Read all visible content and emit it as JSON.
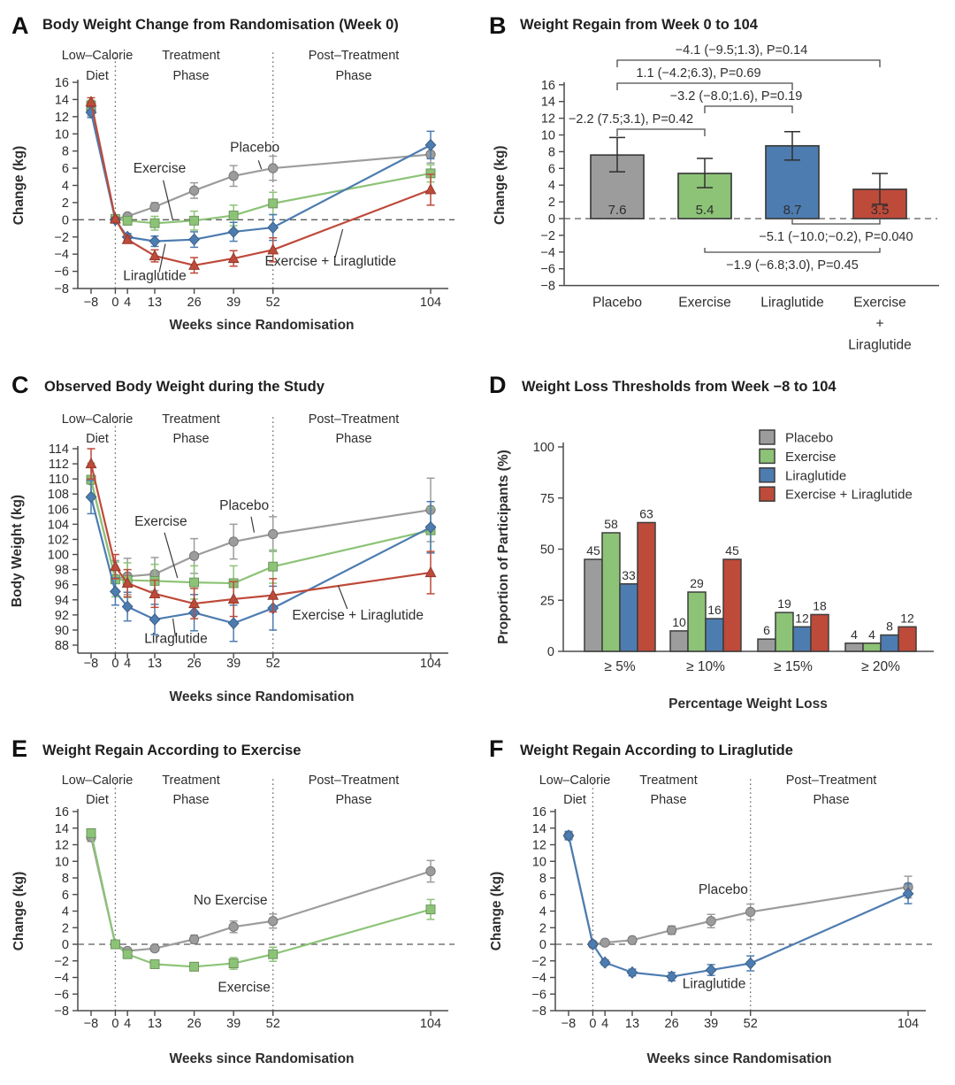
{
  "panels": {
    "A": {
      "letter": "A",
      "title": "Body Weight Change from Randomisation (Week 0)"
    },
    "B": {
      "letter": "B",
      "title": "Weight Regain from Week 0 to 104"
    },
    "C": {
      "letter": "C",
      "title": "Observed Body Weight during the Study"
    },
    "D": {
      "letter": "D",
      "title": "Weight Loss Thresholds from Week −8 to 104"
    },
    "E": {
      "letter": "E",
      "title": "Weight Regain According to Exercise"
    },
    "F": {
      "letter": "F",
      "title": "Weight Regain According to Liraglutide"
    }
  },
  "phase_labels": [
    {
      "lines": [
        "Low–Calorie",
        "Diet"
      ]
    },
    {
      "lines": [
        "Treatment",
        "Phase"
      ]
    },
    {
      "lines": [
        "Post–Treatment",
        "Phase"
      ]
    }
  ],
  "colors": {
    "placebo": "#9C9C9C",
    "exercise": "#8CC377",
    "liraglutide": "#4D7CB0",
    "combo": "#BE4A3A",
    "axis": "#4A4A4A",
    "text": "#2E2E2E",
    "zero_dash": "#5A5A5A",
    "divider_dot": "#6E6E6E",
    "bar_outline": "#3D3D3D",
    "error_bar_dark": "#2F2F2F"
  },
  "chart_data": [
    {
      "panel": "A",
      "type": "line",
      "title": "Body Weight Change from Randomisation (Week 0)",
      "xlabel": "Weeks since Randomisation",
      "ylabel": "Change (kg)",
      "x": [
        -8,
        0,
        4,
        13,
        26,
        39,
        52,
        104
      ],
      "ylim": [
        -8,
        16
      ],
      "yticks": [
        -8,
        -6,
        -4,
        -2,
        0,
        2,
        4,
        6,
        8,
        10,
        12,
        14,
        16
      ],
      "zero_line": true,
      "phase_dividers": [
        0,
        52
      ],
      "series": [
        {
          "name": "Placebo",
          "color_key": "placebo",
          "marker": "circle",
          "values": [
            12.8,
            0.1,
            0.4,
            1.5,
            3.4,
            5.1,
            6.0,
            7.6
          ],
          "err": [
            0.7,
            0.2,
            0.3,
            0.5,
            0.9,
            1.2,
            1.4,
            1.0
          ]
        },
        {
          "name": "Exercise",
          "color_key": "exercise",
          "marker": "square",
          "values": [
            13.3,
            0.1,
            -0.1,
            -0.4,
            -0.1,
            0.5,
            1.9,
            5.4
          ],
          "err": [
            0.6,
            0.2,
            0.5,
            0.8,
            1.1,
            1.2,
            1.3,
            1.0
          ]
        },
        {
          "name": "Liraglutide",
          "color_key": "liraglutide",
          "marker": "diamond",
          "values": [
            12.5,
            0.0,
            -2.0,
            -2.5,
            -2.3,
            -1.4,
            -0.9,
            8.7
          ],
          "err": [
            0.6,
            0.2,
            0.4,
            0.6,
            0.9,
            1.1,
            1.5,
            1.6
          ]
        },
        {
          "name": "Exercise + Liraglutide",
          "color_key": "combo",
          "marker": "triangle",
          "values": [
            13.7,
            0.1,
            -2.3,
            -4.2,
            -5.3,
            -4.5,
            -3.5,
            3.5
          ],
          "err": [
            0.5,
            0.2,
            0.4,
            0.7,
            0.9,
            0.9,
            1.4,
            1.8
          ]
        }
      ],
      "annotations": [
        {
          "text": "Exercise",
          "x": 14.6,
          "y": 5.5,
          "leader": [
            15.8,
            4.6,
            19,
            -0.1
          ]
        },
        {
          "text": "Placebo",
          "x": 46,
          "y": 7.9,
          "leader": [
            47.2,
            6.9,
            48.2,
            5.9
          ]
        },
        {
          "text": "Liraglutide",
          "x": 13,
          "y": -7.0,
          "leader": [
            14.5,
            -6.1,
            16.5,
            -2.8
          ]
        },
        {
          "text": "Exercise + Liraglutide",
          "x": 71,
          "y": -5.3,
          "leader": [
            72.5,
            -4.4,
            75,
            -1.1
          ]
        }
      ]
    },
    {
      "panel": "B",
      "type": "bar",
      "title": "Weight Regain from Week 0 to 104",
      "ylabel": "Change (kg)",
      "ylim": [
        -8,
        16
      ],
      "yticks": [
        -8,
        -6,
        -4,
        -2,
        0,
        2,
        4,
        6,
        8,
        10,
        12,
        14,
        16
      ],
      "zero_line": true,
      "categories": [
        [
          "Placebo"
        ],
        [
          "Exercise"
        ],
        [
          "Liraglutide"
        ],
        [
          "Exercise",
          "+",
          "Liraglutide"
        ]
      ],
      "series_color_keys": [
        "placebo",
        "exercise",
        "liraglutide",
        "combo"
      ],
      "values": [
        7.6,
        5.4,
        8.7,
        3.5
      ],
      "bar_labels": [
        "7.6",
        "5.4",
        "8.7",
        "3.5"
      ],
      "ci_low": [
        5.6,
        3.7,
        7.0,
        1.7
      ],
      "ci_high": [
        9.7,
        7.2,
        10.4,
        5.4
      ],
      "comparisons": [
        {
          "text": "−4.1 (−9.5;1.3), P=0.14",
          "from": 0,
          "to": 3,
          "side": "top",
          "level": 0
        },
        {
          "text": "1.1 (−4.2;6.3), P=0.69",
          "from": 0,
          "to": 2,
          "side": "top",
          "level": 1
        },
        {
          "text": "−3.2 (−8.0;1.6), P=0.19",
          "from": 1,
          "to": 2,
          "side": "top",
          "level": 2
        },
        {
          "text": "−2.2 (7.5;3.1), P=0.42",
          "from": 0,
          "to": 1,
          "side": "top",
          "level": 3
        },
        {
          "text": "−5.1 (−10.0;−0.2), P=0.040",
          "from": 2,
          "to": 3,
          "side": "bottom",
          "level": 0
        },
        {
          "text": "−1.9 (−6.8;3.0), P=0.45",
          "from": 1,
          "to": 3,
          "side": "bottom",
          "level": 1
        }
      ]
    },
    {
      "panel": "C",
      "type": "line",
      "title": "Observed Body Weight during the Study",
      "xlabel": "Weeks since Randomisation",
      "ylabel": "Body Weight (kg)",
      "x": [
        -8,
        0,
        4,
        13,
        26,
        39,
        52,
        104
      ],
      "ylim": [
        88,
        114
      ],
      "yticks": [
        88,
        90,
        92,
        94,
        96,
        98,
        100,
        102,
        104,
        106,
        108,
        110,
        112,
        114
      ],
      "zero_line": false,
      "phase_dividers": [
        0,
        52
      ],
      "series": [
        {
          "name": "Placebo",
          "color_key": "placebo",
          "marker": "circle",
          "values": [
            109.8,
            96.8,
            97.1,
            97.4,
            99.8,
            101.7,
            102.7,
            105.9
          ],
          "err": [
            2.3,
            2.4,
            2.4,
            2.2,
            2.3,
            2.3,
            2.3,
            4.2
          ]
        },
        {
          "name": "Exercise",
          "color_key": "exercise",
          "marker": "square",
          "values": [
            109.9,
            96.7,
            96.6,
            96.5,
            96.3,
            96.2,
            98.4,
            103.2
          ],
          "err": [
            2.2,
            2.3,
            2.3,
            2.2,
            2.2,
            2.3,
            2.2,
            3.0
          ]
        },
        {
          "name": "Liraglutide",
          "color_key": "liraglutide",
          "marker": "diamond",
          "values": [
            107.6,
            95.1,
            93.1,
            91.4,
            92.3,
            90.9,
            92.9,
            103.6
          ],
          "err": [
            2.2,
            1.8,
            1.9,
            2.0,
            2.4,
            2.4,
            2.9,
            3.4
          ]
        },
        {
          "name": "Exercise + Liraglutide",
          "color_key": "combo",
          "marker": "triangle",
          "values": [
            112.0,
            98.4,
            96.2,
            94.8,
            93.5,
            94.1,
            94.6,
            97.6
          ],
          "err": [
            2.0,
            1.6,
            1.8,
            1.8,
            2.0,
            2.3,
            2.2,
            2.8
          ]
        }
      ],
      "annotations": [
        {
          "text": "Exercise",
          "x": 15,
          "y": 103.8,
          "leader": [
            16.2,
            102.9,
            20.5,
            96.9
          ]
        },
        {
          "text": "Placebo",
          "x": 42.5,
          "y": 105.9,
          "leader": [
            44.8,
            105.0,
            45.8,
            102.9
          ]
        },
        {
          "text": "Liraglutide",
          "x": 20,
          "y": 88.3,
          "leader": [
            19.8,
            89.2,
            19,
            91.5
          ]
        },
        {
          "text": "Exercise + Liraglutide",
          "x": 80,
          "y": 91.4,
          "leader": [
            76.5,
            92.8,
            73.5,
            95.9
          ]
        }
      ]
    },
    {
      "panel": "D",
      "type": "grouped-bar",
      "title": "Weight Loss Thresholds from Week −8 to 104",
      "xlabel": "Percentage Weight Loss",
      "ylabel": "Proportion of Participants (%)",
      "categories": [
        "≥ 5%",
        "≥ 10%",
        "≥ 15%",
        "≥ 20%"
      ],
      "ylim": [
        0,
        100
      ],
      "yticks": [
        0,
        25,
        50,
        75,
        100
      ],
      "legend_position": "top-right",
      "series": [
        {
          "name": "Placebo",
          "color_key": "placebo",
          "values": [
            45,
            10,
            6,
            4
          ]
        },
        {
          "name": "Exercise",
          "color_key": "exercise",
          "values": [
            58,
            29,
            19,
            4
          ]
        },
        {
          "name": "Liraglutide",
          "color_key": "liraglutide",
          "values": [
            33,
            16,
            12,
            8
          ]
        },
        {
          "name": "Exercise + Liraglutide",
          "color_key": "combo",
          "values": [
            63,
            45,
            18,
            12
          ]
        }
      ]
    },
    {
      "panel": "E",
      "type": "line",
      "title": "Weight Regain According to Exercise",
      "xlabel": "Weeks since Randomisation",
      "ylabel": "Change (kg)",
      "x": [
        -8,
        0,
        4,
        13,
        26,
        39,
        52,
        104
      ],
      "ylim": [
        -8,
        16
      ],
      "yticks": [
        -8,
        -6,
        -4,
        -2,
        0,
        2,
        4,
        6,
        8,
        10,
        12,
        14,
        16
      ],
      "zero_line": true,
      "phase_dividers": [
        0,
        52
      ],
      "series": [
        {
          "name": "No Exercise",
          "color_key": "placebo",
          "marker": "circle",
          "values": [
            12.9,
            0.0,
            -0.8,
            -0.5,
            0.6,
            2.1,
            2.8,
            8.8
          ],
          "err": [
            0.5,
            0.15,
            0.25,
            0.35,
            0.5,
            0.7,
            0.85,
            1.3
          ]
        },
        {
          "name": "Exercise",
          "color_key": "exercise",
          "marker": "square",
          "values": [
            13.4,
            0.0,
            -1.2,
            -2.4,
            -2.7,
            -2.3,
            -1.2,
            4.2
          ],
          "err": [
            0.5,
            0.15,
            0.25,
            0.4,
            0.5,
            0.7,
            0.85,
            1.2
          ]
        }
      ],
      "annotations": [
        {
          "text": "No Exercise",
          "x": 38,
          "y": 4.8
        },
        {
          "text": "Exercise",
          "x": 42.5,
          "y": -5.7
        }
      ]
    },
    {
      "panel": "F",
      "type": "line",
      "title": "Weight Regain According to Liraglutide",
      "xlabel": "Weeks since Randomisation",
      "ylabel": "Change (kg)",
      "x": [
        -8,
        0,
        4,
        13,
        26,
        39,
        52,
        104
      ],
      "ylim": [
        -8,
        16
      ],
      "yticks": [
        -8,
        -6,
        -4,
        -2,
        0,
        2,
        4,
        6,
        8,
        10,
        12,
        14,
        16
      ],
      "zero_line": true,
      "phase_dividers": [
        0,
        52
      ],
      "series": [
        {
          "name": "Placebo",
          "color_key": "placebo",
          "marker": "circle",
          "values": [
            13.1,
            0.0,
            0.2,
            0.5,
            1.7,
            2.8,
            3.9,
            6.9
          ],
          "err": [
            0.5,
            0.15,
            0.2,
            0.3,
            0.5,
            0.8,
            0.95,
            1.3
          ]
        },
        {
          "name": "Liraglutide",
          "color_key": "liraglutide",
          "marker": "diamond",
          "values": [
            13.1,
            0.0,
            -2.2,
            -3.4,
            -3.9,
            -3.1,
            -2.3,
            6.1
          ],
          "err": [
            0.5,
            0.15,
            0.3,
            0.4,
            0.5,
            0.65,
            0.9,
            1.2
          ]
        }
      ],
      "annotations": [
        {
          "text": "Placebo",
          "x": 43,
          "y": 6.1
        },
        {
          "text": "Liraglutide",
          "x": 40,
          "y": -5.3
        }
      ]
    }
  ]
}
